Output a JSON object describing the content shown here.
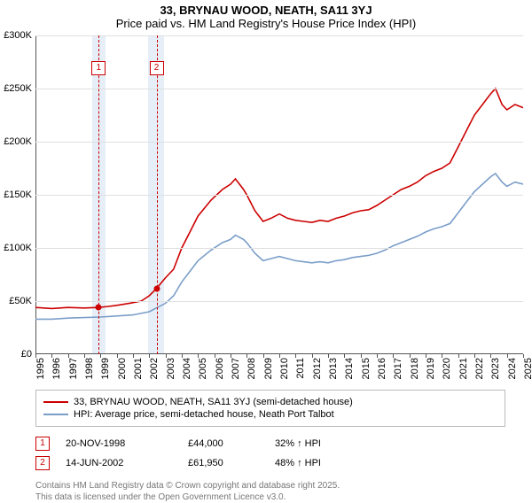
{
  "title": "33, BRYNAU WOOD, NEATH, SA11 3YJ",
  "subtitle": "Price paid vs. HM Land Registry's House Price Index (HPI)",
  "chart": {
    "type": "line",
    "x_min": 1995,
    "x_max": 2025,
    "y_min": 0,
    "y_max": 300000,
    "y_tick_step": 50000,
    "y_tick_prefix": "£",
    "y_tick_suffix_thousands": "K",
    "background_color": "#ffffff",
    "grid_color": "#e0e0e0",
    "axis_color": "#555555",
    "band_color": "#e6eef7",
    "marker_border_color": "#cc0000",
    "line_width": 1.6,
    "bands": [
      {
        "start": 1998.5,
        "end": 1999.3
      },
      {
        "start": 2001.9,
        "end": 2002.9
      }
    ],
    "markers": [
      {
        "label": "1",
        "x": 1998.89,
        "dash_color": "#cc0000"
      },
      {
        "label": "2",
        "x": 2002.45,
        "dash_color": "#cc0000"
      }
    ],
    "sale_points": [
      {
        "x": 1998.89,
        "y": 44000
      },
      {
        "x": 2002.45,
        "y": 61950
      }
    ],
    "series": [
      {
        "name": "33, BRYNAU WOOD, NEATH, SA11 3YJ (semi-detached house)",
        "color": "#cc0000",
        "points": [
          [
            1995,
            44000
          ],
          [
            1996,
            43000
          ],
          [
            1997,
            44000
          ],
          [
            1998,
            43500
          ],
          [
            1998.89,
            44000
          ],
          [
            1999.5,
            45000
          ],
          [
            2000,
            46000
          ],
          [
            2000.8,
            48000
          ],
          [
            2001.5,
            50000
          ],
          [
            2002,
            55000
          ],
          [
            2002.45,
            61950
          ],
          [
            2003,
            72000
          ],
          [
            2003.5,
            80000
          ],
          [
            2004,
            100000
          ],
          [
            2004.5,
            115000
          ],
          [
            2005,
            130000
          ],
          [
            2005.8,
            145000
          ],
          [
            2006.5,
            155000
          ],
          [
            2007,
            160000
          ],
          [
            2007.3,
            165000
          ],
          [
            2007.8,
            155000
          ],
          [
            2008,
            150000
          ],
          [
            2008.5,
            135000
          ],
          [
            2009,
            125000
          ],
          [
            2009.5,
            128000
          ],
          [
            2010,
            132000
          ],
          [
            2010.5,
            128000
          ],
          [
            2011,
            126000
          ],
          [
            2011.5,
            125000
          ],
          [
            2012,
            124000
          ],
          [
            2012.5,
            126000
          ],
          [
            2013,
            125000
          ],
          [
            2013.5,
            128000
          ],
          [
            2014,
            130000
          ],
          [
            2014.5,
            133000
          ],
          [
            2015,
            135000
          ],
          [
            2015.5,
            136000
          ],
          [
            2016,
            140000
          ],
          [
            2016.5,
            145000
          ],
          [
            2017,
            150000
          ],
          [
            2017.5,
            155000
          ],
          [
            2018,
            158000
          ],
          [
            2018.5,
            162000
          ],
          [
            2019,
            168000
          ],
          [
            2019.5,
            172000
          ],
          [
            2020,
            175000
          ],
          [
            2020.5,
            180000
          ],
          [
            2021,
            195000
          ],
          [
            2021.5,
            210000
          ],
          [
            2022,
            225000
          ],
          [
            2022.5,
            235000
          ],
          [
            2023,
            245000
          ],
          [
            2023.3,
            250000
          ],
          [
            2023.7,
            235000
          ],
          [
            2024,
            230000
          ],
          [
            2024.5,
            235000
          ],
          [
            2025,
            232000
          ]
        ]
      },
      {
        "name": "HPI: Average price, semi-detached house, Neath Port Talbot",
        "color": "#7a9ec9",
        "points": [
          [
            1995,
            33000
          ],
          [
            1996,
            33000
          ],
          [
            1997,
            34000
          ],
          [
            1998,
            34500
          ],
          [
            1999,
            35000
          ],
          [
            2000,
            36000
          ],
          [
            2001,
            37000
          ],
          [
            2002,
            40000
          ],
          [
            2003,
            48000
          ],
          [
            2003.5,
            55000
          ],
          [
            2004,
            68000
          ],
          [
            2004.5,
            78000
          ],
          [
            2005,
            88000
          ],
          [
            2005.8,
            98000
          ],
          [
            2006.5,
            105000
          ],
          [
            2007,
            108000
          ],
          [
            2007.3,
            112000
          ],
          [
            2007.8,
            108000
          ],
          [
            2008,
            105000
          ],
          [
            2008.5,
            95000
          ],
          [
            2009,
            88000
          ],
          [
            2009.5,
            90000
          ],
          [
            2010,
            92000
          ],
          [
            2010.5,
            90000
          ],
          [
            2011,
            88000
          ],
          [
            2011.5,
            87000
          ],
          [
            2012,
            86000
          ],
          [
            2012.5,
            87000
          ],
          [
            2013,
            86000
          ],
          [
            2013.5,
            88000
          ],
          [
            2014,
            89000
          ],
          [
            2014.5,
            91000
          ],
          [
            2015,
            92000
          ],
          [
            2015.5,
            93000
          ],
          [
            2016,
            95000
          ],
          [
            2016.5,
            98000
          ],
          [
            2017,
            102000
          ],
          [
            2017.5,
            105000
          ],
          [
            2018,
            108000
          ],
          [
            2018.5,
            111000
          ],
          [
            2019,
            115000
          ],
          [
            2019.5,
            118000
          ],
          [
            2020,
            120000
          ],
          [
            2020.5,
            123000
          ],
          [
            2021,
            133000
          ],
          [
            2021.5,
            143000
          ],
          [
            2022,
            153000
          ],
          [
            2022.5,
            160000
          ],
          [
            2023,
            167000
          ],
          [
            2023.3,
            170000
          ],
          [
            2023.7,
            162000
          ],
          [
            2024,
            158000
          ],
          [
            2024.5,
            162000
          ],
          [
            2025,
            160000
          ]
        ]
      }
    ]
  },
  "legend": {
    "items": [
      {
        "color": "#cc0000",
        "label": "33, BRYNAU WOOD, NEATH, SA11 3YJ (semi-detached house)"
      },
      {
        "color": "#7a9ec9",
        "label": "HPI: Average price, semi-detached house, Neath Port Talbot"
      }
    ]
  },
  "sales": [
    {
      "num": "1",
      "date": "20-NOV-1998",
      "price": "£44,000",
      "delta": "32% ↑ HPI"
    },
    {
      "num": "2",
      "date": "14-JUN-2002",
      "price": "£61,950",
      "delta": "48% ↑ HPI"
    }
  ],
  "footer": {
    "line1": "Contains HM Land Registry data © Crown copyright and database right 2025.",
    "line2": "This data is licensed under the Open Government Licence v3.0."
  }
}
